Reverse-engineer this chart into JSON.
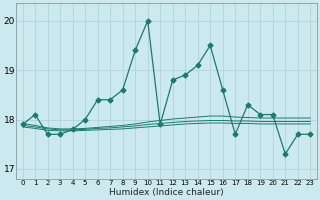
{
  "xlabel": "Humidex (Indice chaleur)",
  "bg_color": "#cce9f0",
  "grid_color": "#aed4dc",
  "line_color": "#1a7a6e",
  "xlim": [
    -0.5,
    23.5
  ],
  "ylim": [
    16.8,
    20.35
  ],
  "yticks": [
    17,
    18,
    19,
    20
  ],
  "xticks": [
    0,
    1,
    2,
    3,
    4,
    5,
    6,
    7,
    8,
    9,
    10,
    11,
    12,
    13,
    14,
    15,
    16,
    17,
    18,
    19,
    20,
    21,
    22,
    23
  ],
  "series": [
    [
      17.9,
      18.1,
      17.7,
      17.7,
      17.8,
      18.0,
      18.4,
      18.4,
      18.6,
      19.4,
      20.0,
      17.9,
      18.8,
      18.9,
      19.1,
      19.5,
      18.6,
      17.7,
      18.3,
      18.1,
      18.1,
      17.3,
      17.7,
      17.7
    ],
    [
      17.85,
      17.82,
      17.78,
      17.77,
      17.77,
      17.78,
      17.79,
      17.8,
      17.81,
      17.83,
      17.85,
      17.87,
      17.89,
      17.91,
      17.92,
      17.93,
      17.93,
      17.92,
      17.92,
      17.91,
      17.91,
      17.91,
      17.91,
      17.91
    ],
    [
      17.88,
      17.85,
      17.81,
      17.79,
      17.79,
      17.8,
      17.82,
      17.83,
      17.85,
      17.87,
      17.9,
      17.92,
      17.94,
      17.96,
      17.97,
      17.98,
      17.98,
      17.97,
      17.97,
      17.96,
      17.96,
      17.96,
      17.96,
      17.96
    ],
    [
      17.92,
      17.88,
      17.83,
      17.81,
      17.81,
      17.82,
      17.84,
      17.86,
      17.88,
      17.91,
      17.95,
      17.98,
      18.01,
      18.03,
      18.05,
      18.07,
      18.07,
      18.05,
      18.04,
      18.03,
      18.03,
      18.03,
      18.03,
      18.03
    ]
  ],
  "marker": "D",
  "markersize": 2.5,
  "linewidth": 0.9
}
